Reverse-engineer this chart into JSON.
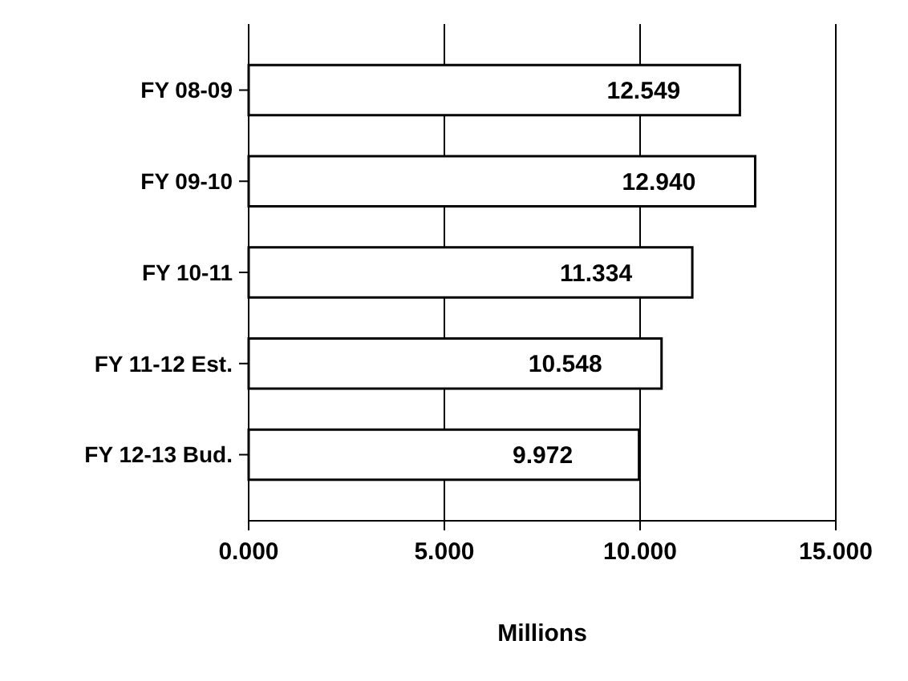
{
  "chart_data": {
    "type": "bar",
    "orientation": "horizontal",
    "xlabel": "Millions",
    "categories": [
      "FY 08-09",
      "FY 09-10",
      "FY 10-11",
      "FY 11-12 Est.",
      "FY 12-13 Bud."
    ],
    "values": [
      12.549,
      12.94,
      11.334,
      10.548,
      9.972
    ],
    "value_labels": [
      "12.549",
      "12.940",
      "11.334",
      "10.548",
      "9.972"
    ],
    "color": "#ffffff",
    "xlim": [
      0,
      15
    ],
    "xticks": [
      {
        "value": 0,
        "label": "0.000"
      },
      {
        "value": 5,
        "label": "5.000"
      },
      {
        "value": 10,
        "label": "10.000"
      },
      {
        "value": 15,
        "label": "15.000"
      }
    ],
    "grid": "x"
  }
}
